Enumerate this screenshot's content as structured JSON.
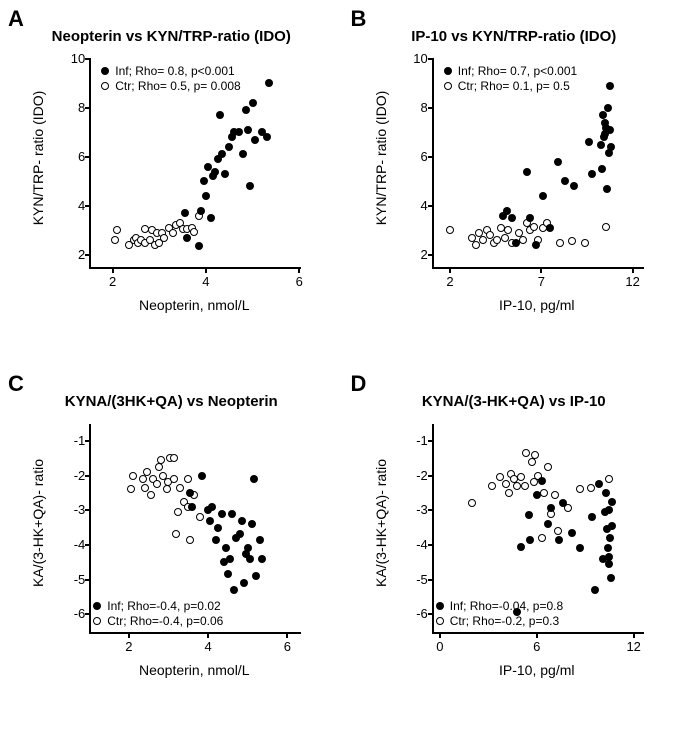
{
  "panels": {
    "A": {
      "letter": "A",
      "title": "Neopterin vs KYN/TRP-ratio (IDO)",
      "xlabel": "Neopterin, nmol/L",
      "ylabel": "KYN/TRP- ratio (IDO)",
      "xlim": [
        1.5,
        6
      ],
      "ylim": [
        1.5,
        10
      ],
      "xticks": [
        2,
        4,
        6
      ],
      "yticks": [
        2,
        4,
        6,
        8,
        10
      ],
      "legend_pos": "top",
      "legend_inf": "Inf; Rho= 0.8, p<0.001",
      "legend_ctr": "Ctr; Rho= 0.5, p= 0.008",
      "inf_points": [
        [
          3.9,
          3.8
        ],
        [
          3.95,
          5.0
        ],
        [
          4.0,
          4.4
        ],
        [
          4.05,
          5.6
        ],
        [
          3.55,
          3.7
        ],
        [
          3.6,
          2.7
        ],
        [
          4.1,
          3.5
        ],
        [
          4.15,
          5.2
        ],
        [
          4.2,
          5.4
        ],
        [
          4.25,
          5.9
        ],
        [
          4.3,
          7.7
        ],
        [
          3.85,
          2.35
        ],
        [
          4.35,
          6.1
        ],
        [
          4.4,
          5.3
        ],
        [
          4.5,
          6.4
        ],
        [
          4.55,
          6.8
        ],
        [
          4.6,
          7.0
        ],
        [
          4.7,
          7.0
        ],
        [
          4.8,
          6.1
        ],
        [
          4.85,
          7.9
        ],
        [
          4.9,
          7.1
        ],
        [
          4.95,
          4.8
        ],
        [
          5.0,
          8.2
        ],
        [
          5.05,
          6.7
        ],
        [
          5.2,
          7.0
        ],
        [
          5.3,
          6.8
        ],
        [
          5.35,
          9.0
        ]
      ],
      "ctr_points": [
        [
          2.05,
          2.6
        ],
        [
          2.1,
          3.0
        ],
        [
          2.35,
          2.4
        ],
        [
          2.45,
          2.6
        ],
        [
          2.5,
          2.7
        ],
        [
          2.55,
          2.5
        ],
        [
          2.6,
          2.6
        ],
        [
          2.7,
          3.05
        ],
        [
          2.7,
          2.5
        ],
        [
          2.8,
          2.6
        ],
        [
          2.85,
          3.0
        ],
        [
          2.9,
          2.4
        ],
        [
          2.95,
          2.9
        ],
        [
          3.0,
          2.5
        ],
        [
          3.05,
          2.9
        ],
        [
          3.1,
          2.7
        ],
        [
          3.2,
          3.1
        ],
        [
          3.3,
          2.9
        ],
        [
          3.35,
          3.2
        ],
        [
          3.45,
          3.3
        ],
        [
          3.5,
          3.05
        ],
        [
          3.6,
          3.05
        ],
        [
          3.7,
          3.1
        ],
        [
          3.75,
          2.95
        ],
        [
          3.85,
          3.6
        ]
      ]
    },
    "B": {
      "letter": "B",
      "title": "IP-10 vs KYN/TRP-ratio (IDO)",
      "xlabel": "IP-10, pg/ml",
      "ylabel": "KYN/TRP- ratio (IDO)",
      "xlim": [
        1,
        12.5
      ],
      "ylim": [
        1.5,
        10
      ],
      "xticks": [
        2,
        7,
        12
      ],
      "yticks": [
        2,
        4,
        6,
        8,
        10
      ],
      "legend_pos": "top",
      "legend_inf": "Inf; Rho= 0.7, p<0.001",
      "legend_ctr": "Ctr; Rho= 0.1, p= 0.5",
      "inf_points": [
        [
          4.9,
          3.6
        ],
        [
          5.1,
          3.8
        ],
        [
          5.4,
          3.5
        ],
        [
          5.6,
          2.5
        ],
        [
          6.2,
          5.4
        ],
        [
          6.4,
          3.5
        ],
        [
          6.7,
          2.4
        ],
        [
          7.1,
          4.4
        ],
        [
          7.5,
          3.1
        ],
        [
          7.9,
          5.8
        ],
        [
          8.3,
          5.0
        ],
        [
          8.8,
          4.8
        ],
        [
          9.6,
          6.6
        ],
        [
          9.8,
          5.3
        ],
        [
          10.25,
          6.5
        ],
        [
          10.35,
          5.5
        ],
        [
          10.4,
          7.7
        ],
        [
          10.45,
          6.8
        ],
        [
          10.5,
          7.4
        ],
        [
          10.5,
          6.95
        ],
        [
          10.55,
          7.2
        ],
        [
          10.6,
          4.7
        ],
        [
          10.65,
          8.0
        ],
        [
          10.7,
          6.15
        ],
        [
          10.75,
          8.9
        ],
        [
          10.75,
          7.1
        ],
        [
          10.8,
          6.4
        ]
      ],
      "ctr_points": [
        [
          2.0,
          3.0
        ],
        [
          3.2,
          2.7
        ],
        [
          3.4,
          2.4
        ],
        [
          3.6,
          2.9
        ],
        [
          3.8,
          2.6
        ],
        [
          4.0,
          3.0
        ],
        [
          4.2,
          2.8
        ],
        [
          4.4,
          2.5
        ],
        [
          4.6,
          2.6
        ],
        [
          4.8,
          3.1
        ],
        [
          5.0,
          2.7
        ],
        [
          5.2,
          3.0
        ],
        [
          5.4,
          2.5
        ],
        [
          5.8,
          2.9
        ],
        [
          6.0,
          2.6
        ],
        [
          6.2,
          3.3
        ],
        [
          6.4,
          3.0
        ],
        [
          6.6,
          3.15
        ],
        [
          6.8,
          2.6
        ],
        [
          7.1,
          3.1
        ],
        [
          7.3,
          3.3
        ],
        [
          8.0,
          2.5
        ],
        [
          8.7,
          2.55
        ],
        [
          9.4,
          2.5
        ],
        [
          10.55,
          3.15
        ]
      ]
    },
    "C": {
      "letter": "C",
      "title": "KYNA/(3HK+QA) vs Neopterin",
      "xlabel": "Neopterin, nmol/L",
      "ylabel": "KA/(3-HK+QA)- ratio",
      "xlim": [
        1,
        6.3
      ],
      "ylim": [
        -6.5,
        -0.5
      ],
      "xticks": [
        2,
        4,
        6
      ],
      "yticks": [
        -6,
        -5,
        -4,
        -3,
        -2,
        -1
      ],
      "legend_pos": "bottom",
      "legend_inf": "Inf;  Rho=-0.4, p=0.02",
      "legend_ctr": "Ctr;  Rho=-0.4, p=0.06",
      "inf_points": [
        [
          3.55,
          -2.5
        ],
        [
          3.6,
          -2.9
        ],
        [
          3.85,
          -2.0
        ],
        [
          4.0,
          -3.0
        ],
        [
          4.05,
          -3.3
        ],
        [
          4.1,
          -2.9
        ],
        [
          4.2,
          -3.85
        ],
        [
          4.25,
          -3.5
        ],
        [
          4.35,
          -3.1
        ],
        [
          4.4,
          -4.5
        ],
        [
          4.45,
          -4.1
        ],
        [
          4.5,
          -4.85
        ],
        [
          4.55,
          -4.4
        ],
        [
          4.6,
          -3.1
        ],
        [
          4.65,
          -5.3
        ],
        [
          4.7,
          -3.8
        ],
        [
          4.8,
          -3.7
        ],
        [
          4.85,
          -3.3
        ],
        [
          4.9,
          -5.1
        ],
        [
          4.95,
          -4.25
        ],
        [
          5.0,
          -4.1
        ],
        [
          5.05,
          -4.4
        ],
        [
          5.1,
          -3.4
        ],
        [
          5.15,
          -2.1
        ],
        [
          5.2,
          -4.9
        ],
        [
          5.3,
          -3.85
        ],
        [
          5.35,
          -4.4
        ]
      ],
      "ctr_points": [
        [
          2.05,
          -2.4
        ],
        [
          2.1,
          -2.0
        ],
        [
          2.35,
          -2.1
        ],
        [
          2.4,
          -2.35
        ],
        [
          2.45,
          -1.9
        ],
        [
          2.55,
          -2.55
        ],
        [
          2.6,
          -2.1
        ],
        [
          2.7,
          -2.25
        ],
        [
          2.75,
          -1.75
        ],
        [
          2.8,
          -1.55
        ],
        [
          2.85,
          -2.0
        ],
        [
          2.95,
          -2.4
        ],
        [
          3.0,
          -2.2
        ],
        [
          3.05,
          -1.5
        ],
        [
          3.15,
          -1.5
        ],
        [
          3.15,
          -2.1
        ],
        [
          3.2,
          -3.7
        ],
        [
          3.25,
          -3.05
        ],
        [
          3.3,
          -2.35
        ],
        [
          3.4,
          -2.75
        ],
        [
          3.5,
          -2.9
        ],
        [
          3.55,
          -3.85
        ],
        [
          3.5,
          -2.1
        ],
        [
          3.65,
          -2.55
        ],
        [
          3.8,
          -3.2
        ]
      ]
    },
    "D": {
      "letter": "D",
      "title": "KYNA/(3-HK+QA) vs IP-10",
      "xlabel": "IP-10, pg/ml",
      "ylabel": "KA/(3-HK+QA)- ratio",
      "xlim": [
        -0.5,
        12.5
      ],
      "ylim": [
        -6.5,
        -0.5
      ],
      "xticks": [
        0,
        6,
        12
      ],
      "yticks": [
        -6,
        -5,
        -4,
        -3,
        -2,
        -1
      ],
      "legend_pos": "bottom",
      "legend_inf": "Inf;  Rho=-0.04, p=0.8",
      "legend_ctr": "Ctr;  Rho=-0.2, p=0.3",
      "inf_points": [
        [
          4.8,
          -5.95
        ],
        [
          5.0,
          -4.05
        ],
        [
          5.5,
          -3.15
        ],
        [
          5.6,
          -3.85
        ],
        [
          6.0,
          -2.55
        ],
        [
          6.3,
          -2.15
        ],
        [
          6.7,
          -3.4
        ],
        [
          6.9,
          -2.95
        ],
        [
          7.4,
          -3.85
        ],
        [
          7.6,
          -2.8
        ],
        [
          8.2,
          -3.65
        ],
        [
          8.7,
          -4.1
        ],
        [
          9.4,
          -3.2
        ],
        [
          9.6,
          -5.3
        ],
        [
          9.85,
          -2.25
        ],
        [
          10.1,
          -4.4
        ],
        [
          10.2,
          -3.05
        ],
        [
          10.3,
          -2.5
        ],
        [
          10.35,
          -3.55
        ],
        [
          10.4,
          -4.1
        ],
        [
          10.45,
          -3.0
        ],
        [
          10.45,
          -4.35
        ],
        [
          10.5,
          -4.55
        ],
        [
          10.55,
          -3.8
        ],
        [
          10.6,
          -4.95
        ],
        [
          10.65,
          -2.75
        ],
        [
          10.65,
          -3.45
        ]
      ],
      "ctr_points": [
        [
          2.0,
          -2.8
        ],
        [
          3.2,
          -2.3
        ],
        [
          3.7,
          -2.05
        ],
        [
          4.1,
          -2.25
        ],
        [
          4.3,
          -2.5
        ],
        [
          4.4,
          -1.95
        ],
        [
          4.6,
          -2.1
        ],
        [
          4.8,
          -2.3
        ],
        [
          5.0,
          -2.05
        ],
        [
          5.25,
          -2.3
        ],
        [
          5.35,
          -1.35
        ],
        [
          5.7,
          -1.6
        ],
        [
          5.8,
          -2.2
        ],
        [
          5.9,
          -1.4
        ],
        [
          6.1,
          -2.0
        ],
        [
          6.35,
          -3.8
        ],
        [
          6.45,
          -2.5
        ],
        [
          6.7,
          -1.75
        ],
        [
          6.9,
          -3.1
        ],
        [
          7.15,
          -2.55
        ],
        [
          7.3,
          -3.6
        ],
        [
          7.95,
          -2.95
        ],
        [
          8.65,
          -2.4
        ],
        [
          9.35,
          -2.35
        ],
        [
          10.5,
          -2.1
        ]
      ]
    }
  },
  "marker_filled_color": "#000000",
  "marker_open_stroke": "#000000",
  "marker_open_fill": "#ffffff",
  "background_color": "#ffffff",
  "font_title_size": 15,
  "font_label_size": 14,
  "font_tick_size": 13,
  "font_legend_size": 12
}
